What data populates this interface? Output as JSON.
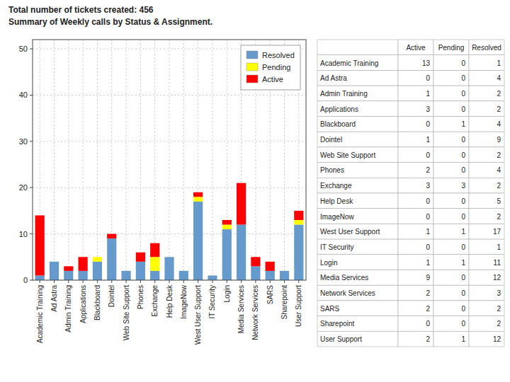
{
  "chart_data": {
    "type": "bar",
    "stacked": true,
    "title": "Total number of tickets created:  456",
    "subtitle": "Summary of Weekly calls by Status & Assignment.",
    "categories": [
      "Academic Training",
      "Ad Astra",
      "Admin Training",
      "Applications",
      "Blackboard",
      "Dointel",
      "Web Site Support",
      "Phones",
      "Exchange",
      "Help Desk",
      "ImageNow",
      "West User Support",
      "IT Security",
      "Login",
      "Media Services",
      "Network Services",
      "SARS",
      "Sharepoint",
      "User Support"
    ],
    "series": [
      {
        "name": "Resolved",
        "color": "#6699CC",
        "values": [
          1,
          4,
          2,
          2,
          4,
          9,
          2,
          4,
          2,
          5,
          2,
          17,
          1,
          11,
          12,
          3,
          2,
          2,
          12
        ]
      },
      {
        "name": "Pending",
        "color": "#FFFF00",
        "values": [
          0,
          0,
          0,
          0,
          1,
          0,
          0,
          0,
          3,
          0,
          0,
          1,
          0,
          1,
          0,
          0,
          0,
          0,
          1
        ]
      },
      {
        "name": "Active",
        "color": "#FF0000",
        "values": [
          13,
          0,
          1,
          3,
          0,
          1,
          0,
          2,
          3,
          0,
          0,
          1,
          0,
          1,
          9,
          2,
          2,
          0,
          2
        ]
      }
    ],
    "ylim": [
      0,
      52
    ],
    "yticks": [
      0,
      10,
      20,
      30,
      40,
      50
    ],
    "grid": true,
    "legend": "upper right"
  }
}
